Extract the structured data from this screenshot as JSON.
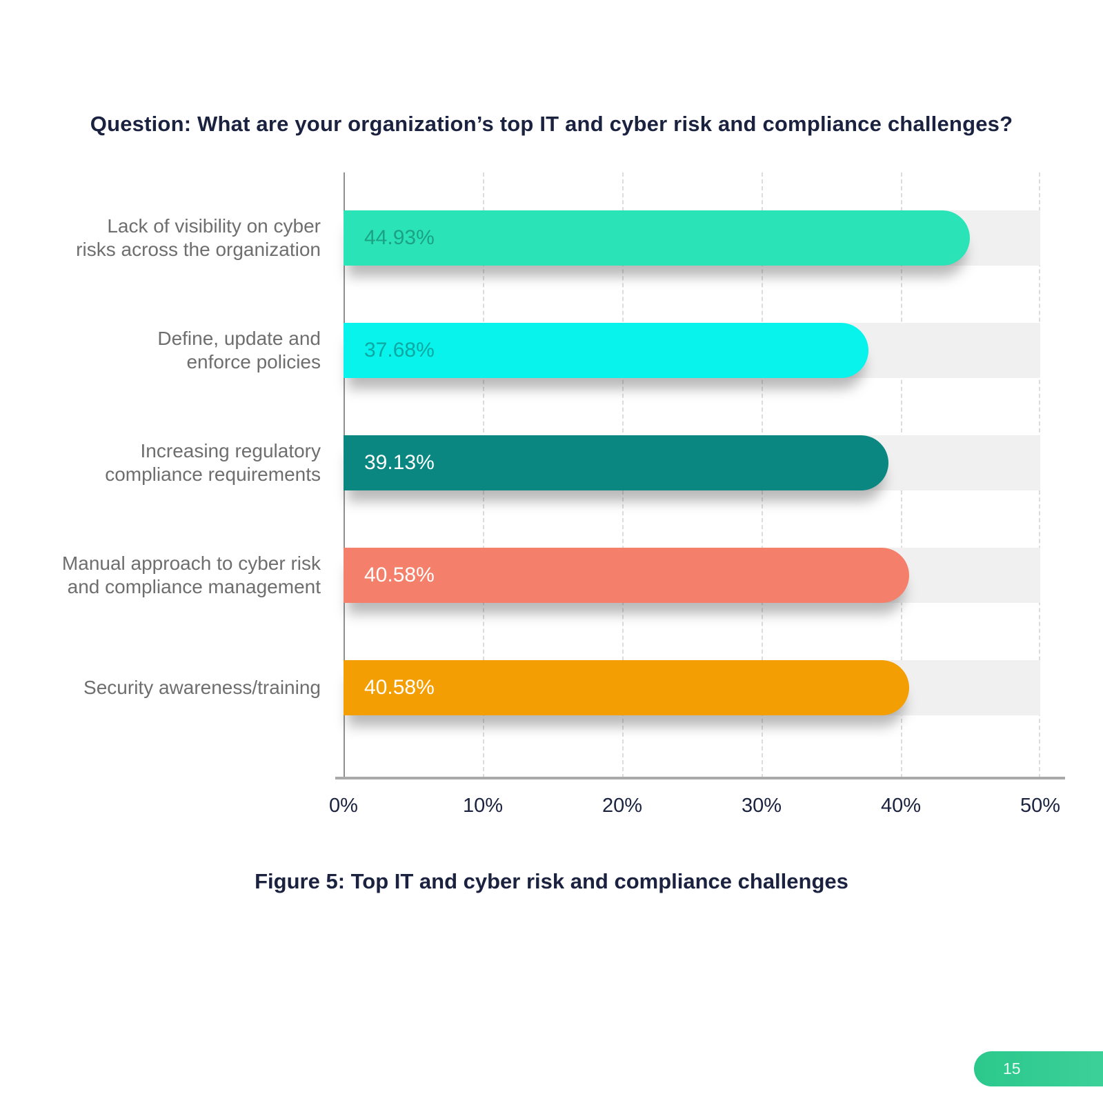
{
  "page_number": "15",
  "figure_caption": "Figure 5: Top IT and cyber risk and compliance challenges",
  "chart_data": {
    "type": "bar",
    "orientation": "horizontal",
    "title": "Question: What are your organization’s top IT and cyber risk and compliance challenges?",
    "categories": [
      "Lack of visibility on cyber risks across the organization",
      "Define, update and enforce policies",
      "Increasing regulatory compliance requirements",
      "Manual approach to cyber risk and compliance management",
      "Security awareness/training"
    ],
    "values": [
      44.93,
      37.68,
      39.13,
      40.58,
      40.58
    ],
    "xlim": [
      0,
      50
    ],
    "x_tick_labels": [
      "0%",
      "10%",
      "20%",
      "30%",
      "40%",
      "50%"
    ],
    "grid": "vertical-dashed",
    "legend": "none",
    "track_color": "#f1f0f0",
    "bars": [
      {
        "label_lines": [
          "Lack of visibility on cyber",
          "risks across the organization"
        ],
        "value": 44.93,
        "value_label": "44.93%",
        "color": "#2ae4b7",
        "value_label_color": "#1ba285"
      },
      {
        "label_lines": [
          "Define, update and",
          "enforce policies"
        ],
        "value": 37.68,
        "value_label": "37.68%",
        "color": "#07f3eb",
        "value_label_color": "#0da8a2"
      },
      {
        "label_lines": [
          "Increasing regulatory",
          "compliance requirements"
        ],
        "value": 39.13,
        "value_label": "39.13%",
        "color": "#098780",
        "value_label_color": "#ffffff"
      },
      {
        "label_lines": [
          "Manual approach to cyber risk",
          "and compliance management"
        ],
        "value": 40.58,
        "value_label": "40.58%",
        "color": "#f4806b",
        "value_label_color": "#ffffff"
      },
      {
        "label_lines": [
          "Security awareness/training"
        ],
        "value": 40.58,
        "value_label": "40.58%",
        "color": "#f39e03",
        "value_label_color": "#ffffff"
      }
    ],
    "colors": {
      "heading_text": "#1a2240",
      "tick_text": "#1a2240",
      "category_text": "#6e6e6e",
      "gridline": "#dcdcdc",
      "axis_line": "#a9a9a9",
      "badge_gradient_start": "#2bc88c",
      "badge_gradient_end": "#40d29c"
    }
  }
}
